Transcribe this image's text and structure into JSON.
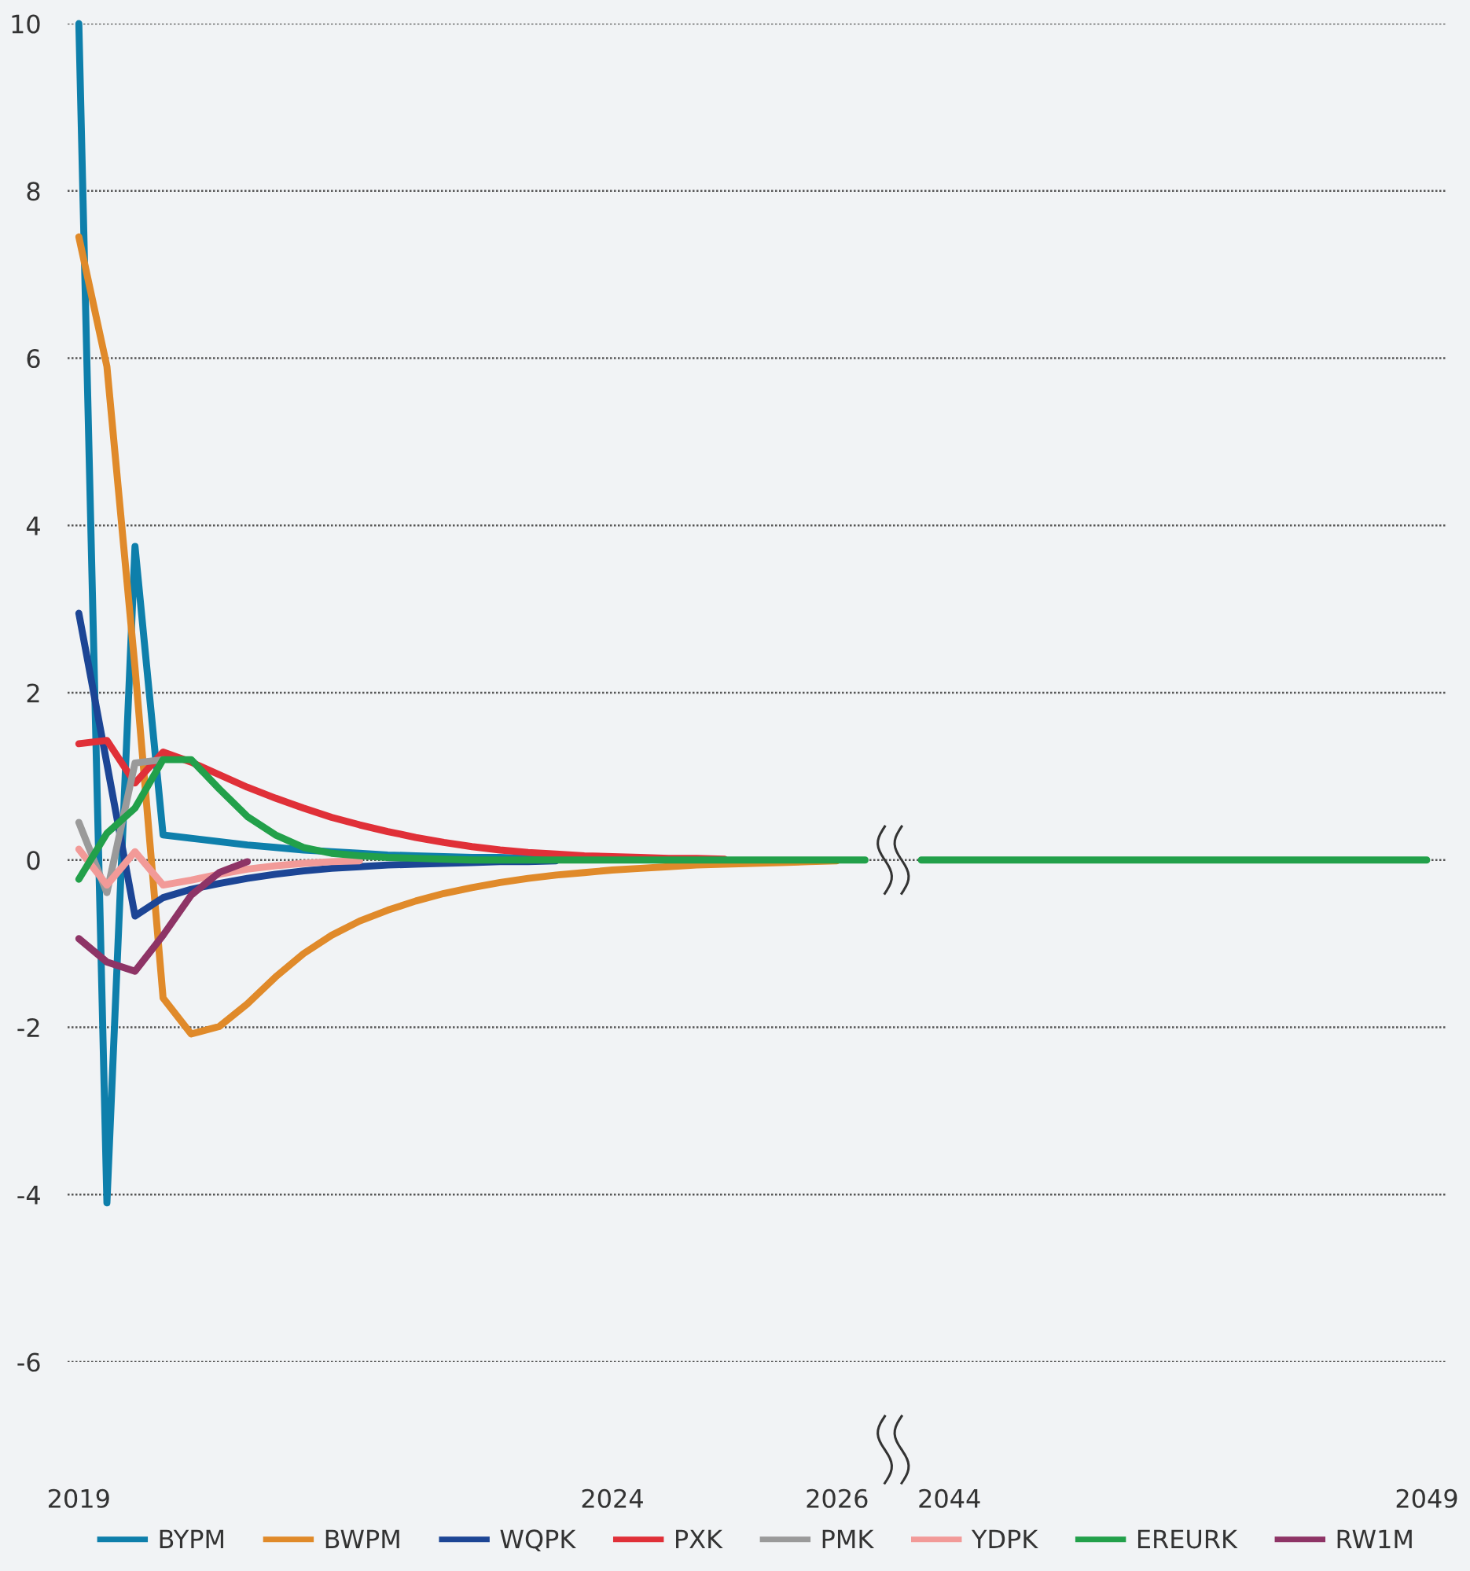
{
  "chart_data": {
    "type": "line",
    "categories": [
      "2019",
      null,
      null,
      null,
      null,
      null,
      null,
      null,
      null,
      null,
      null,
      null,
      null,
      null,
      null,
      null,
      null,
      null,
      null,
      "2024",
      null,
      null,
      null,
      null,
      null,
      null,
      null,
      "2026",
      null,
      null,
      null,
      "2044",
      null,
      null,
      null,
      null,
      null,
      null,
      null,
      null,
      null,
      null,
      null,
      null,
      null,
      null,
      null,
      null,
      "2049"
    ],
    "series": [
      {
        "name": "BYPM",
        "color": "#0e7fab",
        "values": [
          10,
          -4.1,
          3.75,
          0.3,
          0.26,
          0.22,
          0.18,
          0.15,
          0.12,
          0.1,
          0.08,
          0.06,
          0.05,
          0.04,
          0.03,
          0.03,
          0.02,
          0.02,
          0.01,
          0.01,
          null,
          null,
          null,
          null,
          null,
          null,
          null,
          null,
          null,
          null,
          null,
          null,
          null,
          null,
          null,
          null,
          null,
          null,
          null,
          null,
          null,
          null,
          null,
          null,
          null,
          null,
          null,
          null,
          null
        ]
      },
      {
        "name": "BWPM",
        "color": "#e08a2a",
        "values": [
          7.45,
          5.9,
          2.3,
          -1.65,
          -2.08,
          -1.99,
          -1.72,
          -1.4,
          -1.12,
          -0.9,
          -0.73,
          -0.6,
          -0.49,
          -0.4,
          -0.33,
          -0.27,
          -0.22,
          -0.18,
          -0.15,
          -0.12,
          -0.1,
          -0.08,
          -0.06,
          -0.05,
          -0.04,
          -0.03,
          -0.02,
          -0.01,
          null,
          null,
          null,
          null,
          null,
          null,
          null,
          null,
          null,
          null,
          null,
          null,
          null,
          null,
          null,
          null,
          null,
          null,
          null,
          null,
          null
        ]
      },
      {
        "name": "WQPK",
        "color": "#1c4595",
        "values": [
          2.95,
          1.15,
          -0.67,
          -0.45,
          -0.35,
          -0.28,
          -0.22,
          -0.17,
          -0.13,
          -0.1,
          -0.08,
          -0.06,
          -0.05,
          -0.04,
          -0.03,
          -0.02,
          -0.02,
          -0.01,
          null,
          null,
          null,
          null,
          null,
          null,
          null,
          null,
          null,
          null,
          null,
          null,
          null,
          null,
          null,
          null,
          null,
          null,
          null,
          null,
          null,
          null,
          null,
          null,
          null,
          null,
          null,
          null,
          null,
          null,
          null
        ]
      },
      {
        "name": "PXK",
        "color": "#e03038",
        "values": [
          1.39,
          1.43,
          0.92,
          1.29,
          1.17,
          1.02,
          0.87,
          0.74,
          0.62,
          0.51,
          0.42,
          0.34,
          0.27,
          0.21,
          0.16,
          0.12,
          0.09,
          0.07,
          0.05,
          0.04,
          0.03,
          0.02,
          0.02,
          0.01,
          null,
          null,
          null,
          null,
          null,
          null,
          null,
          null,
          null,
          null,
          null,
          null,
          null,
          null,
          null,
          null,
          null,
          null,
          null,
          null,
          null,
          null,
          null,
          null,
          null
        ]
      },
      {
        "name": "PMK",
        "color": "#9a9a9a",
        "values": [
          0.45,
          -0.39,
          1.16,
          1.2,
          null,
          null,
          null,
          null,
          null,
          null,
          null,
          null,
          null,
          null,
          null,
          null,
          null,
          null,
          null,
          null,
          null,
          null,
          null,
          null,
          null,
          null,
          null,
          null,
          null,
          null,
          null,
          null,
          null,
          null,
          null,
          null,
          null,
          null,
          null,
          null,
          null,
          null,
          null,
          null,
          null,
          null,
          null,
          null,
          null
        ]
      },
      {
        "name": "YDPK",
        "color": "#f29a98",
        "values": [
          0.13,
          -0.3,
          0.1,
          -0.3,
          -0.24,
          -0.17,
          -0.11,
          -0.07,
          -0.04,
          -0.02,
          -0.01,
          null,
          null,
          null,
          null,
          null,
          null,
          null,
          null,
          null,
          null,
          null,
          null,
          null,
          null,
          null,
          null,
          null,
          null,
          null,
          null,
          null,
          null,
          null,
          null,
          null,
          null,
          null,
          null,
          null,
          null,
          null,
          null,
          null,
          null,
          null,
          null,
          null,
          null
        ]
      },
      {
        "name": "EREURK",
        "color": "#22a04a",
        "values": [
          -0.23,
          0.32,
          0.62,
          1.2,
          1.2,
          0.85,
          0.52,
          0.3,
          0.15,
          0.08,
          0.05,
          0.03,
          0.02,
          0.01,
          0,
          0,
          0,
          0,
          0,
          0,
          0,
          0,
          0,
          0,
          0,
          0,
          0,
          0,
          0,
          null,
          0,
          0,
          0,
          0,
          0,
          0,
          0,
          0,
          0,
          0,
          0,
          0,
          0,
          0,
          0,
          0,
          0,
          0,
          0
        ]
      },
      {
        "name": "RW1M",
        "color": "#8e3466",
        "values": [
          -0.94,
          -1.22,
          -1.33,
          -0.9,
          -0.42,
          -0.15,
          -0.02,
          null,
          null,
          null,
          null,
          null,
          null,
          null,
          null,
          null,
          null,
          null,
          null,
          null,
          null,
          null,
          null,
          null,
          null,
          null,
          null,
          null,
          null,
          null,
          null,
          null,
          null,
          null,
          null,
          null,
          null,
          null,
          null,
          null,
          null,
          null,
          null,
          null,
          null,
          null,
          null,
          null,
          null
        ]
      }
    ],
    "ylim": [
      -6,
      10
    ],
    "yticks": [
      -6,
      -4,
      -2,
      0,
      2,
      4,
      6,
      8,
      10
    ],
    "grid": "y",
    "legend": "bottom",
    "marker": "none",
    "line_style": "solid"
  }
}
